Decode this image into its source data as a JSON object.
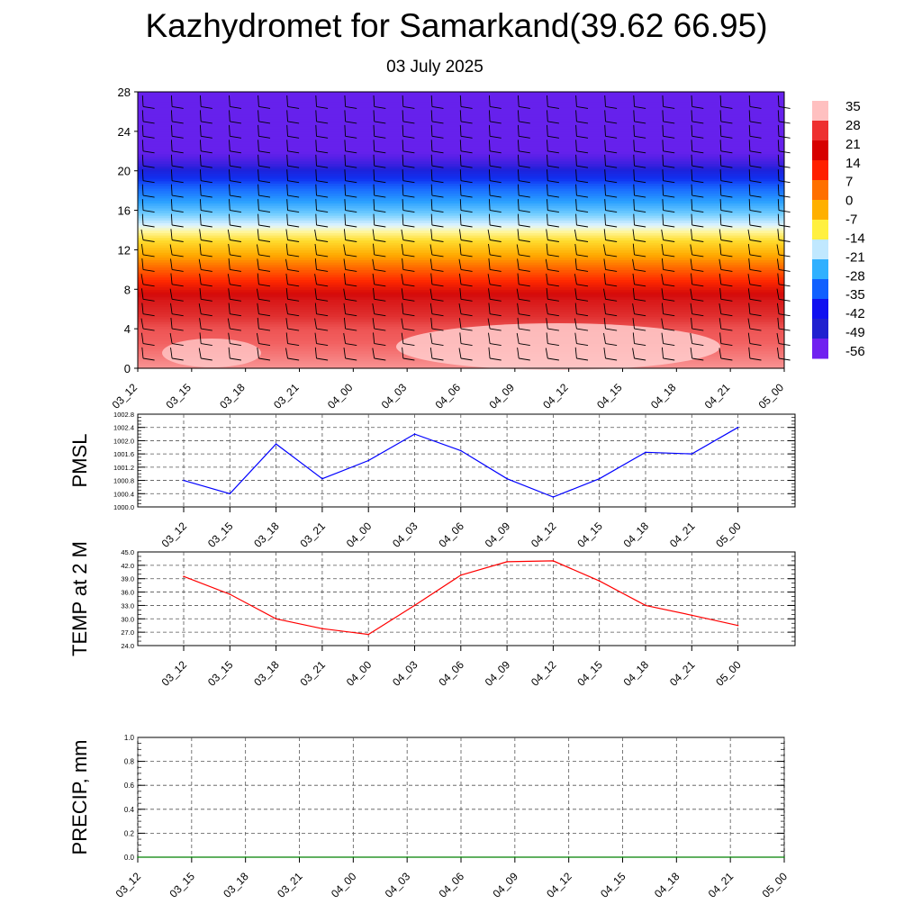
{
  "title": "Kazhydromet for Samarkand(39.62 66.95)",
  "subtitle": "03 July 2025",
  "time_labels": [
    "03_12",
    "03_15",
    "03_18",
    "03_21",
    "04_00",
    "04_03",
    "04_06",
    "04_09",
    "04_12",
    "04_15",
    "04_18",
    "04_21",
    "05_00"
  ],
  "colors": {
    "pmsl": "#0000ff",
    "temp": "#ff0000",
    "precip": "#008000"
  },
  "chart_data": [
    {
      "type": "heatmap",
      "title": "",
      "x": [
        "03_12",
        "03_15",
        "03_18",
        "03_21",
        "04_00",
        "04_03",
        "04_06",
        "04_09",
        "04_12",
        "04_15",
        "04_18",
        "04_21",
        "05_00"
      ],
      "y_ticks": [
        0,
        4,
        8,
        12,
        16,
        20,
        24,
        28
      ],
      "ylim": [
        0,
        28
      ],
      "overlay": "wind barbs",
      "colorbar_labels": [
        35,
        28,
        21,
        14,
        7,
        0,
        -7,
        -14,
        -21,
        -28,
        -35,
        -42,
        -49,
        -56
      ],
      "colorbar_colors": [
        "#ffc0c0",
        "#ee3030",
        "#d70000",
        "#ff2000",
        "#ff7000",
        "#ffb000",
        "#fff040",
        "#c0e8ff",
        "#30b0ff",
        "#1060ff",
        "#1010f0",
        "#2020d0",
        "#7020f0"
      ],
      "profile": [
        {
          "level": 0,
          "value": 33
        },
        {
          "level": 4,
          "value": 30
        },
        {
          "level": 7,
          "value": 23
        },
        {
          "level": 10,
          "value": 12
        },
        {
          "level": 13,
          "value": 0
        },
        {
          "level": 14.2,
          "value": -8
        },
        {
          "level": 16,
          "value": -20
        },
        {
          "level": 18.5,
          "value": -36
        },
        {
          "level": 20.5,
          "value": -52
        },
        {
          "level": 22,
          "value": -58
        },
        {
          "level": 28,
          "value": -58
        }
      ]
    },
    {
      "type": "line",
      "ylabel": "PMSL",
      "categories": [
        "03_12",
        "03_15",
        "03_18",
        "03_21",
        "04_00",
        "04_03",
        "04_06",
        "04_09",
        "04_12",
        "04_15",
        "04_18",
        "04_21",
        "05_00"
      ],
      "values": [
        1000.8,
        1000.4,
        1001.9,
        1000.85,
        1001.4,
        1002.2,
        1001.7,
        1000.85,
        1000.3,
        1000.85,
        1001.65,
        1001.6,
        1002.4
      ],
      "ylim": [
        1000.0,
        1002.8
      ],
      "yticks": [
        "1000.0",
        "1000.4",
        "1000.8",
        "1001.2",
        "1001.6",
        "1002.0",
        "1002.4",
        "1002.8"
      ]
    },
    {
      "type": "line",
      "ylabel": "TEMP at 2 M",
      "categories": [
        "03_12",
        "03_15",
        "03_18",
        "03_21",
        "04_00",
        "04_03",
        "04_06",
        "04_09",
        "04_12",
        "04_15",
        "04_18",
        "04_21",
        "05_00"
      ],
      "values": [
        39.5,
        35.5,
        30.0,
        27.8,
        26.5,
        33.0,
        39.8,
        42.8,
        43.0,
        38.5,
        33.0,
        30.8,
        28.5
      ],
      "ylim": [
        24.0,
        45.0
      ],
      "yticks": [
        "24.0",
        "27.0",
        "30.0",
        "33.0",
        "36.0",
        "39.0",
        "42.0",
        "45.0"
      ]
    },
    {
      "type": "line",
      "ylabel": "PRECIP, mm",
      "categories": [
        "03_12",
        "03_15",
        "03_18",
        "03_21",
        "04_00",
        "04_03",
        "04_06",
        "04_09",
        "04_12",
        "04_15",
        "04_18",
        "04_21",
        "05_00"
      ],
      "values": [
        0,
        0,
        0,
        0,
        0,
        0,
        0,
        0,
        0,
        0,
        0,
        0,
        0
      ],
      "ylim": [
        0.0,
        1.0
      ],
      "yticks": [
        "0.0",
        "0.2",
        "0.4",
        "0.6",
        "0.8",
        "1.0"
      ]
    }
  ]
}
